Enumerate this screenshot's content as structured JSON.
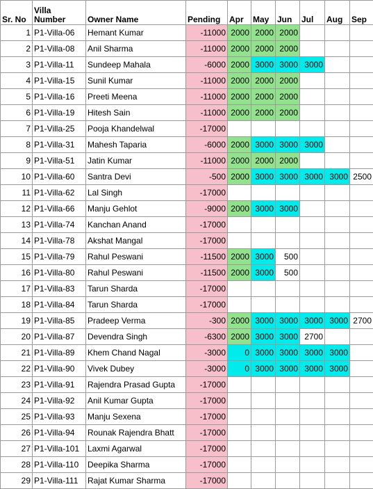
{
  "headers": {
    "sr": "Sr. No",
    "villa": "Villa\nNumber",
    "owner": "Owner Name",
    "pending": "Pending",
    "months": [
      "Apr",
      "May",
      "Jun",
      "Jul",
      "Aug",
      "Sep"
    ]
  },
  "colors": {
    "pending": "#f7bfca",
    "green": "#92e28d",
    "cyan": "#00ecec"
  },
  "rows": [
    {
      "sr": "1",
      "villa": "P1-Villa-06",
      "owner": "Hemant Kumar",
      "pending": "-11000",
      "months": [
        {
          "v": "2000",
          "c": "g"
        },
        {
          "v": "2000",
          "c": "g"
        },
        {
          "v": "2000",
          "c": "g"
        },
        {
          "v": "",
          "c": ""
        },
        {
          "v": "",
          "c": ""
        },
        {
          "v": "",
          "c": ""
        }
      ]
    },
    {
      "sr": "2",
      "villa": "P1-Villa-08",
      "owner": "Anil Sharma",
      "pending": "-11000",
      "months": [
        {
          "v": "2000",
          "c": "g"
        },
        {
          "v": "2000",
          "c": "g"
        },
        {
          "v": "2000",
          "c": "g"
        },
        {
          "v": "",
          "c": ""
        },
        {
          "v": "",
          "c": ""
        },
        {
          "v": "",
          "c": ""
        }
      ]
    },
    {
      "sr": "3",
      "villa": "P1-Villa-11",
      "owner": "Sundeep Mahala",
      "pending": "-6000",
      "months": [
        {
          "v": "2000",
          "c": "g"
        },
        {
          "v": "3000",
          "c": "c"
        },
        {
          "v": "3000",
          "c": "c"
        },
        {
          "v": "3000",
          "c": "c"
        },
        {
          "v": "",
          "c": ""
        },
        {
          "v": "",
          "c": ""
        }
      ]
    },
    {
      "sr": "4",
      "villa": "P1-Villa-15",
      "owner": "Sunil Kumar",
      "pending": "-11000",
      "months": [
        {
          "v": "2000",
          "c": "g"
        },
        {
          "v": "2000",
          "c": "g"
        },
        {
          "v": "2000",
          "c": "g"
        },
        {
          "v": "",
          "c": ""
        },
        {
          "v": "",
          "c": ""
        },
        {
          "v": "",
          "c": ""
        }
      ]
    },
    {
      "sr": "5",
      "villa": "P1-Villa-16",
      "owner": "Preeti Meena",
      "pending": "-11000",
      "months": [
        {
          "v": "2000",
          "c": "g"
        },
        {
          "v": "2000",
          "c": "g"
        },
        {
          "v": "2000",
          "c": "g"
        },
        {
          "v": "",
          "c": ""
        },
        {
          "v": "",
          "c": ""
        },
        {
          "v": "",
          "c": ""
        }
      ]
    },
    {
      "sr": "6",
      "villa": "P1-Villa-19",
      "owner": "Hitesh Sain",
      "pending": "-11000",
      "months": [
        {
          "v": "2000",
          "c": "g"
        },
        {
          "v": "2000",
          "c": "g"
        },
        {
          "v": "2000",
          "c": "g"
        },
        {
          "v": "",
          "c": ""
        },
        {
          "v": "",
          "c": ""
        },
        {
          "v": "",
          "c": ""
        }
      ]
    },
    {
      "sr": "7",
      "villa": "P1-Villa-25",
      "owner": "Pooja Khandelwal",
      "pending": "-17000",
      "months": [
        {
          "v": "",
          "c": ""
        },
        {
          "v": "",
          "c": ""
        },
        {
          "v": "",
          "c": ""
        },
        {
          "v": "",
          "c": ""
        },
        {
          "v": "",
          "c": ""
        },
        {
          "v": "",
          "c": ""
        }
      ]
    },
    {
      "sr": "8",
      "villa": "P1-Villa-31",
      "owner": "Mahesh Taparia",
      "pending": "-6000",
      "months": [
        {
          "v": "2000",
          "c": "g"
        },
        {
          "v": "3000",
          "c": "c"
        },
        {
          "v": "3000",
          "c": "c"
        },
        {
          "v": "3000",
          "c": "c"
        },
        {
          "v": "",
          "c": ""
        },
        {
          "v": "",
          "c": ""
        }
      ]
    },
    {
      "sr": "9",
      "villa": "P1-Villa-51",
      "owner": "Jatin Kumar",
      "pending": "-11000",
      "months": [
        {
          "v": "2000",
          "c": "g"
        },
        {
          "v": "2000",
          "c": "g"
        },
        {
          "v": "2000",
          "c": "g"
        },
        {
          "v": "",
          "c": ""
        },
        {
          "v": "",
          "c": ""
        },
        {
          "v": "",
          "c": ""
        }
      ]
    },
    {
      "sr": "10",
      "villa": "P1-Villa-60",
      "owner": "Santra Devi",
      "pending": "-500",
      "months": [
        {
          "v": "2000",
          "c": "g"
        },
        {
          "v": "3000",
          "c": "c"
        },
        {
          "v": "3000",
          "c": "c"
        },
        {
          "v": "3000",
          "c": "c"
        },
        {
          "v": "3000",
          "c": "c"
        },
        {
          "v": "2500",
          "c": ""
        }
      ]
    },
    {
      "sr": "11",
      "villa": "P1-Villa-62",
      "owner": "Lal Singh",
      "pending": "-17000",
      "months": [
        {
          "v": "",
          "c": ""
        },
        {
          "v": "",
          "c": ""
        },
        {
          "v": "",
          "c": ""
        },
        {
          "v": "",
          "c": ""
        },
        {
          "v": "",
          "c": ""
        },
        {
          "v": "",
          "c": ""
        }
      ]
    },
    {
      "sr": "12",
      "villa": "P1-Villa-66",
      "owner": "Manju Gehlot",
      "pending": "-9000",
      "months": [
        {
          "v": "2000",
          "c": "g"
        },
        {
          "v": "3000",
          "c": "c"
        },
        {
          "v": "3000",
          "c": "c"
        },
        {
          "v": "",
          "c": ""
        },
        {
          "v": "",
          "c": ""
        },
        {
          "v": "",
          "c": ""
        }
      ]
    },
    {
      "sr": "13",
      "villa": "P1-Villa-74",
      "owner": "Kanchan Anand",
      "pending": "-17000",
      "months": [
        {
          "v": "",
          "c": ""
        },
        {
          "v": "",
          "c": ""
        },
        {
          "v": "",
          "c": ""
        },
        {
          "v": "",
          "c": ""
        },
        {
          "v": "",
          "c": ""
        },
        {
          "v": "",
          "c": ""
        }
      ]
    },
    {
      "sr": "14",
      "villa": "P1-Villa-78",
      "owner": "Akshat Mangal",
      "pending": "-17000",
      "months": [
        {
          "v": "",
          "c": ""
        },
        {
          "v": "",
          "c": ""
        },
        {
          "v": "",
          "c": ""
        },
        {
          "v": "",
          "c": ""
        },
        {
          "v": "",
          "c": ""
        },
        {
          "v": "",
          "c": ""
        }
      ]
    },
    {
      "sr": "15",
      "villa": "P1-Villa-79",
      "owner": "Rahul Peswani",
      "pending": "-11500",
      "months": [
        {
          "v": "2000",
          "c": "g"
        },
        {
          "v": "3000",
          "c": "c"
        },
        {
          "v": "500",
          "c": ""
        },
        {
          "v": "",
          "c": ""
        },
        {
          "v": "",
          "c": ""
        },
        {
          "v": "",
          "c": ""
        }
      ]
    },
    {
      "sr": "16",
      "villa": "P1-Villa-80",
      "owner": "Rahul Peswani",
      "pending": "-11500",
      "months": [
        {
          "v": "2000",
          "c": "g"
        },
        {
          "v": "3000",
          "c": "c"
        },
        {
          "v": "500",
          "c": ""
        },
        {
          "v": "",
          "c": ""
        },
        {
          "v": "",
          "c": ""
        },
        {
          "v": "",
          "c": ""
        }
      ]
    },
    {
      "sr": "17",
      "villa": "P1-Villa-83",
      "owner": "Tarun Sharda",
      "pending": "-17000",
      "months": [
        {
          "v": "",
          "c": ""
        },
        {
          "v": "",
          "c": ""
        },
        {
          "v": "",
          "c": ""
        },
        {
          "v": "",
          "c": ""
        },
        {
          "v": "",
          "c": ""
        },
        {
          "v": "",
          "c": ""
        }
      ]
    },
    {
      "sr": "18",
      "villa": "P1-Villa-84",
      "owner": "Tarun Sharda",
      "pending": "-17000",
      "months": [
        {
          "v": "",
          "c": ""
        },
        {
          "v": "",
          "c": ""
        },
        {
          "v": "",
          "c": ""
        },
        {
          "v": "",
          "c": ""
        },
        {
          "v": "",
          "c": ""
        },
        {
          "v": "",
          "c": ""
        }
      ]
    },
    {
      "sr": "19",
      "villa": "P1-Villa-85",
      "owner": "Pradeep Verma",
      "pending": "-300",
      "months": [
        {
          "v": "2000",
          "c": "g"
        },
        {
          "v": "3000",
          "c": "c"
        },
        {
          "v": "3000",
          "c": "c"
        },
        {
          "v": "3000",
          "c": "c"
        },
        {
          "v": "3000",
          "c": "c"
        },
        {
          "v": "2700",
          "c": ""
        }
      ]
    },
    {
      "sr": "20",
      "villa": "P1-Villa-87",
      "owner": "Devendra Singh",
      "pending": "-6300",
      "months": [
        {
          "v": "2000",
          "c": "g"
        },
        {
          "v": "3000",
          "c": "c"
        },
        {
          "v": "3000",
          "c": "c"
        },
        {
          "v": "2700",
          "c": ""
        },
        {
          "v": "",
          "c": ""
        },
        {
          "v": "",
          "c": ""
        }
      ]
    },
    {
      "sr": "21",
      "villa": "P1-Villa-89",
      "owner": "Khem Chand Nagal",
      "pending": "-3000",
      "months": [
        {
          "v": "0",
          "c": "c"
        },
        {
          "v": "3000",
          "c": "c"
        },
        {
          "v": "3000",
          "c": "c"
        },
        {
          "v": "3000",
          "c": "c"
        },
        {
          "v": "3000",
          "c": "c"
        },
        {
          "v": "",
          "c": ""
        }
      ]
    },
    {
      "sr": "22",
      "villa": "P1-Villa-90",
      "owner": "Vivek Dubey",
      "pending": "-3000",
      "months": [
        {
          "v": "0",
          "c": "c"
        },
        {
          "v": "3000",
          "c": "c"
        },
        {
          "v": "3000",
          "c": "c"
        },
        {
          "v": "3000",
          "c": "c"
        },
        {
          "v": "3000",
          "c": "c"
        },
        {
          "v": "",
          "c": ""
        }
      ]
    },
    {
      "sr": "23",
      "villa": "P1-Villa-91",
      "owner": "Rajendra Prasad Gupta",
      "pending": "-17000",
      "months": [
        {
          "v": "",
          "c": ""
        },
        {
          "v": "",
          "c": ""
        },
        {
          "v": "",
          "c": ""
        },
        {
          "v": "",
          "c": ""
        },
        {
          "v": "",
          "c": ""
        },
        {
          "v": "",
          "c": ""
        }
      ]
    },
    {
      "sr": "24",
      "villa": "P1-Villa-92",
      "owner": "Anil Kumar Gupta",
      "pending": "-17000",
      "months": [
        {
          "v": "",
          "c": ""
        },
        {
          "v": "",
          "c": ""
        },
        {
          "v": "",
          "c": ""
        },
        {
          "v": "",
          "c": ""
        },
        {
          "v": "",
          "c": ""
        },
        {
          "v": "",
          "c": ""
        }
      ]
    },
    {
      "sr": "25",
      "villa": "P1-Villa-93",
      "owner": "Manju Sexena",
      "pending": "-17000",
      "months": [
        {
          "v": "",
          "c": ""
        },
        {
          "v": "",
          "c": ""
        },
        {
          "v": "",
          "c": ""
        },
        {
          "v": "",
          "c": ""
        },
        {
          "v": "",
          "c": ""
        },
        {
          "v": "",
          "c": ""
        }
      ]
    },
    {
      "sr": "26",
      "villa": "P1-Villa-94",
      "owner": "Rounak Rajendra Bhatt",
      "pending": "-17000",
      "months": [
        {
          "v": "",
          "c": ""
        },
        {
          "v": "",
          "c": ""
        },
        {
          "v": "",
          "c": ""
        },
        {
          "v": "",
          "c": ""
        },
        {
          "v": "",
          "c": ""
        },
        {
          "v": "",
          "c": ""
        }
      ]
    },
    {
      "sr": "27",
      "villa": "P1-Villa-101",
      "owner": "Laxmi Agarwal",
      "pending": "-17000",
      "months": [
        {
          "v": "",
          "c": ""
        },
        {
          "v": "",
          "c": ""
        },
        {
          "v": "",
          "c": ""
        },
        {
          "v": "",
          "c": ""
        },
        {
          "v": "",
          "c": ""
        },
        {
          "v": "",
          "c": ""
        }
      ]
    },
    {
      "sr": "28",
      "villa": "P1-Villa-110",
      "owner": "Deepika Sharma",
      "pending": "-17000",
      "months": [
        {
          "v": "",
          "c": ""
        },
        {
          "v": "",
          "c": ""
        },
        {
          "v": "",
          "c": ""
        },
        {
          "v": "",
          "c": ""
        },
        {
          "v": "",
          "c": ""
        },
        {
          "v": "",
          "c": ""
        }
      ]
    },
    {
      "sr": "29",
      "villa": "P1-Villa-111",
      "owner": "Rajat Kumar Sharma",
      "pending": "-17000",
      "months": [
        {
          "v": "",
          "c": ""
        },
        {
          "v": "",
          "c": ""
        },
        {
          "v": "",
          "c": ""
        },
        {
          "v": "",
          "c": ""
        },
        {
          "v": "",
          "c": ""
        },
        {
          "v": "",
          "c": ""
        }
      ]
    }
  ]
}
